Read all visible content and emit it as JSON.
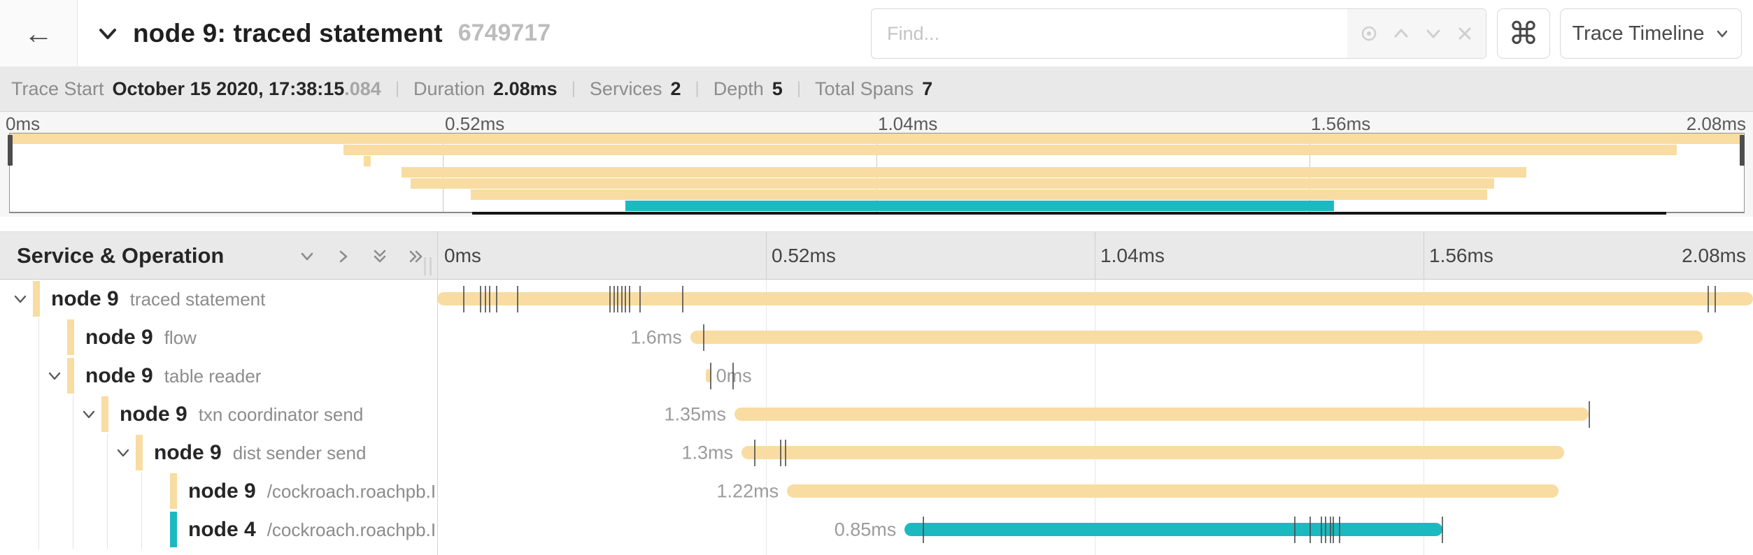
{
  "header": {
    "back_label": "←",
    "title": "node 9: traced statement",
    "trace_id": "6749717",
    "find_placeholder": "Find...",
    "find_icons": [
      "locate-icon",
      "prev-match-icon",
      "next-match-icon",
      "clear-icon"
    ],
    "shortcut_label": "⌘",
    "view_dropdown_label": "Trace Timeline"
  },
  "stats": [
    {
      "label": "Trace Start",
      "value": "October 15 2020, 17:38:15",
      "suffix": ".084"
    },
    {
      "label": "Duration",
      "value": "2.08ms",
      "suffix": ""
    },
    {
      "label": "Services",
      "value": "2",
      "suffix": ""
    },
    {
      "label": "Depth",
      "value": "5",
      "suffix": ""
    },
    {
      "label": "Total Spans",
      "value": "7",
      "suffix": ""
    }
  ],
  "timeline": {
    "left_header": "Service & Operation",
    "axis_ticks": [
      "0ms",
      "0.52ms",
      "1.04ms",
      "1.56ms",
      "2.08ms"
    ],
    "duration_ms": 2.08,
    "collapse_icons": [
      "collapse-one-icon",
      "expand-one-icon",
      "collapse-all-icon",
      "expand-all-icon"
    ]
  },
  "colors": {
    "tan": "#f8dca1",
    "teal": "#1db9c0",
    "header_bg": "#e9e9e9",
    "tick_mark": "#4a4a4a"
  },
  "chart_data": {
    "type": "trace_timeline_gantt",
    "trace_duration_ms": 2.08,
    "axis_ticks_ms": [
      0,
      0.52,
      1.04,
      1.56,
      2.08
    ],
    "spans": [
      {
        "service": "node 9",
        "operation": "traced statement",
        "depth": 0,
        "has_children": true,
        "color_key": "tan",
        "start_ms": 0,
        "duration_ms": 2.08,
        "duration_label": "",
        "label_side": "none",
        "log_ticks_ms": [
          0.042,
          0.069,
          0.076,
          0.083,
          0.094,
          0.127,
          0.273,
          0.28,
          0.285,
          0.292,
          0.297,
          0.304,
          0.321,
          0.388,
          2.009,
          2.02
        ]
      },
      {
        "service": "node 9",
        "operation": "flow",
        "depth": 1,
        "has_children": false,
        "color_key": "tan",
        "start_ms": 0.4,
        "duration_ms": 1.6,
        "duration_label": "1.6ms",
        "label_side": "left",
        "log_ticks_ms": [
          0.421
        ]
      },
      {
        "service": "node 9",
        "operation": "table reader",
        "depth": 1,
        "has_children": true,
        "color_key": "tan",
        "start_ms": 0.425,
        "duration_ms": 0.008,
        "duration_label": "0ms",
        "label_side": "right",
        "log_ticks_ms": [
          0.432,
          0.468
        ]
      },
      {
        "service": "node 9",
        "operation": "txn coordinator send",
        "depth": 2,
        "has_children": true,
        "color_key": "tan",
        "start_ms": 0.47,
        "duration_ms": 1.35,
        "duration_label": "1.35ms",
        "label_side": "left",
        "log_ticks_ms": [
          1.821
        ]
      },
      {
        "service": "node 9",
        "operation": "dist sender send",
        "depth": 3,
        "has_children": true,
        "color_key": "tan",
        "start_ms": 0.481,
        "duration_ms": 1.3,
        "duration_label": "1.3ms",
        "label_side": "left",
        "log_ticks_ms": [
          0.502,
          0.543,
          0.551
        ]
      },
      {
        "service": "node 9",
        "operation": "/cockroach.roachpb.I…",
        "depth": 4,
        "has_children": false,
        "color_key": "tan",
        "start_ms": 0.553,
        "duration_ms": 1.22,
        "duration_label": "1.22ms",
        "label_side": "left",
        "log_ticks_ms": []
      },
      {
        "service": "node 4",
        "operation": "/cockroach.roachpb.I…",
        "depth": 4,
        "has_children": false,
        "color_key": "teal",
        "start_ms": 0.739,
        "duration_ms": 0.85,
        "duration_label": "0.85ms",
        "label_side": "left",
        "log_ticks_ms": [
          0.769,
          1.356,
          1.38,
          1.398,
          1.404,
          1.412,
          1.417,
          1.427,
          1.589
        ]
      }
    ]
  }
}
